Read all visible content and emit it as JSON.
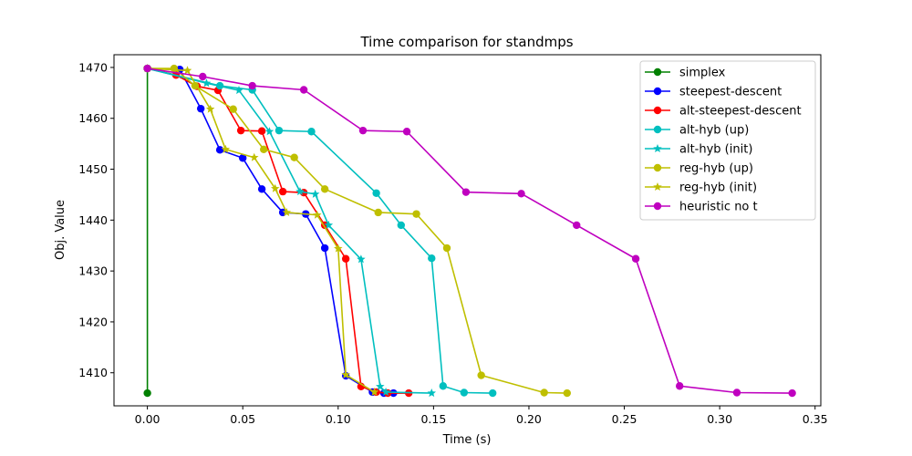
{
  "chart_data": {
    "type": "line",
    "title": "Time comparison for standmps",
    "xlabel": "Time (s)",
    "ylabel": "Obj. Value",
    "xlim": [
      -0.0175,
      0.353
    ],
    "ylim": [
      1403.5,
      1472.5
    ],
    "xticks": [
      0.0,
      0.05,
      0.1,
      0.15,
      0.2,
      0.25,
      0.3,
      0.35
    ],
    "xtick_labels": [
      "0.00",
      "0.05",
      "0.10",
      "0.15",
      "0.20",
      "0.25",
      "0.30",
      "0.35"
    ],
    "yticks": [
      1410,
      1420,
      1430,
      1440,
      1450,
      1460,
      1470
    ],
    "ytick_labels": [
      "1410",
      "1420",
      "1430",
      "1440",
      "1450",
      "1460",
      "1470"
    ],
    "grid": false,
    "legend_position": "top-right",
    "series": [
      {
        "name": "simplex",
        "color": "#008000",
        "marker": "circle",
        "x": [
          0.0,
          0.0,
          0.0
        ],
        "y": [
          1469.8,
          1469.8,
          1406.0
        ]
      },
      {
        "name": "steepest-descent",
        "color": "#0000ff",
        "marker": "circle",
        "x": [
          0.0,
          0.017,
          0.028,
          0.038,
          0.05,
          0.06,
          0.071,
          0.083,
          0.093,
          0.104,
          0.118,
          0.124,
          0.129
        ],
        "y": [
          1469.8,
          1469.6,
          1461.9,
          1453.8,
          1452.2,
          1446.1,
          1441.5,
          1441.2,
          1434.5,
          1409.4,
          1406.2,
          1406.0,
          1406.0
        ]
      },
      {
        "name": "alt-steepest-descent",
        "color": "#ff0000",
        "marker": "circle",
        "x": [
          0.0,
          0.015,
          0.026,
          0.037,
          0.049,
          0.06,
          0.071,
          0.082,
          0.093,
          0.104,
          0.112,
          0.12,
          0.126,
          0.137
        ],
        "y": [
          1469.8,
          1468.5,
          1466.3,
          1465.5,
          1457.6,
          1457.5,
          1445.6,
          1445.4,
          1439.0,
          1432.4,
          1407.3,
          1406.2,
          1406.0,
          1406.0
        ]
      },
      {
        "name": "alt-hyb (up)",
        "color": "#00bfbf",
        "marker": "circle",
        "x": [
          0.0,
          0.038,
          0.055,
          0.069,
          0.086,
          0.12,
          0.133,
          0.149,
          0.155,
          0.166,
          0.181
        ],
        "y": [
          1469.8,
          1466.4,
          1465.6,
          1457.6,
          1457.4,
          1445.3,
          1439.0,
          1432.5,
          1407.4,
          1406.1,
          1406.0
        ]
      },
      {
        "name": "alt-hyb (init)",
        "color": "#00bfbf",
        "marker": "star",
        "x": [
          0.0,
          0.031,
          0.048,
          0.064,
          0.08,
          0.088,
          0.095,
          0.112,
          0.122,
          0.125,
          0.149
        ],
        "y": [
          1469.8,
          1466.9,
          1465.5,
          1457.4,
          1445.6,
          1445.1,
          1439.0,
          1432.3,
          1407.3,
          1406.2,
          1406.0
        ]
      },
      {
        "name": "reg-hyb (up)",
        "color": "#bfbf00",
        "marker": "circle",
        "x": [
          0.0,
          0.014,
          0.025,
          0.045,
          0.061,
          0.077,
          0.093,
          0.121,
          0.141,
          0.157,
          0.175,
          0.208,
          0.22
        ],
        "y": [
          1469.8,
          1469.8,
          1466.4,
          1461.8,
          1453.9,
          1452.3,
          1446.1,
          1441.5,
          1441.2,
          1434.5,
          1409.5,
          1406.1,
          1406.0
        ]
      },
      {
        "name": "reg-hyb (init)",
        "color": "#bfbf00",
        "marker": "star",
        "x": [
          0.0,
          0.021,
          0.033,
          0.041,
          0.056,
          0.067,
          0.073,
          0.089,
          0.1,
          0.104,
          0.119
        ],
        "y": [
          1469.8,
          1469.4,
          1461.8,
          1453.9,
          1452.3,
          1446.2,
          1441.5,
          1441.0,
          1434.4,
          1409.6,
          1406.2
        ]
      },
      {
        "name": "heuristic no t",
        "color": "#bf00bf",
        "marker": "circle",
        "x": [
          0.0,
          0.029,
          0.055,
          0.082,
          0.113,
          0.136,
          0.167,
          0.196,
          0.225,
          0.256,
          0.279,
          0.309,
          0.338
        ],
        "y": [
          1469.8,
          1468.2,
          1466.4,
          1465.6,
          1457.6,
          1457.4,
          1445.5,
          1445.2,
          1439.0,
          1432.4,
          1407.4,
          1406.1,
          1406.0
        ]
      }
    ]
  }
}
